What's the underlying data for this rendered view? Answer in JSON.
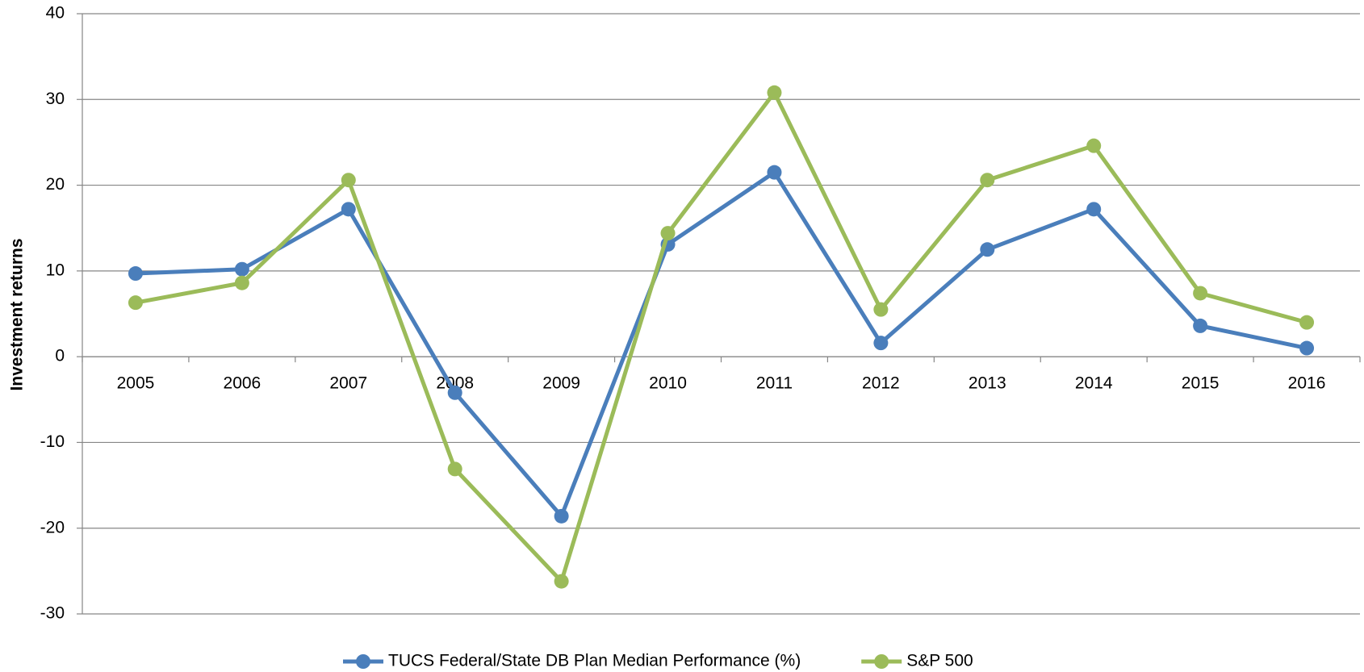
{
  "chart_data": {
    "type": "line",
    "y_label": "Investment returns",
    "categories": [
      "2005",
      "2006",
      "2007",
      "2008",
      "2009",
      "2010",
      "2011",
      "2012",
      "2013",
      "2014",
      "2015",
      "2016"
    ],
    "series": [
      {
        "name": "TUCS Federal/State DB Plan Median Performance (%)",
        "color": "#4a7ebb",
        "values": [
          9.7,
          10.2,
          17.2,
          -4.2,
          -18.6,
          13.1,
          21.5,
          1.6,
          12.5,
          17.2,
          3.6,
          1.0
        ]
      },
      {
        "name": "S&P 500",
        "color": "#9bbb59",
        "values": [
          6.3,
          8.6,
          20.6,
          -13.1,
          -26.2,
          14.4,
          30.8,
          5.5,
          20.6,
          24.6,
          7.4,
          4.0
        ]
      }
    ],
    "ylim": [
      -30,
      40
    ],
    "yticks": [
      -30,
      -20,
      -10,
      0,
      10,
      20,
      30,
      40
    ],
    "grid": true,
    "legend": "bottom"
  }
}
